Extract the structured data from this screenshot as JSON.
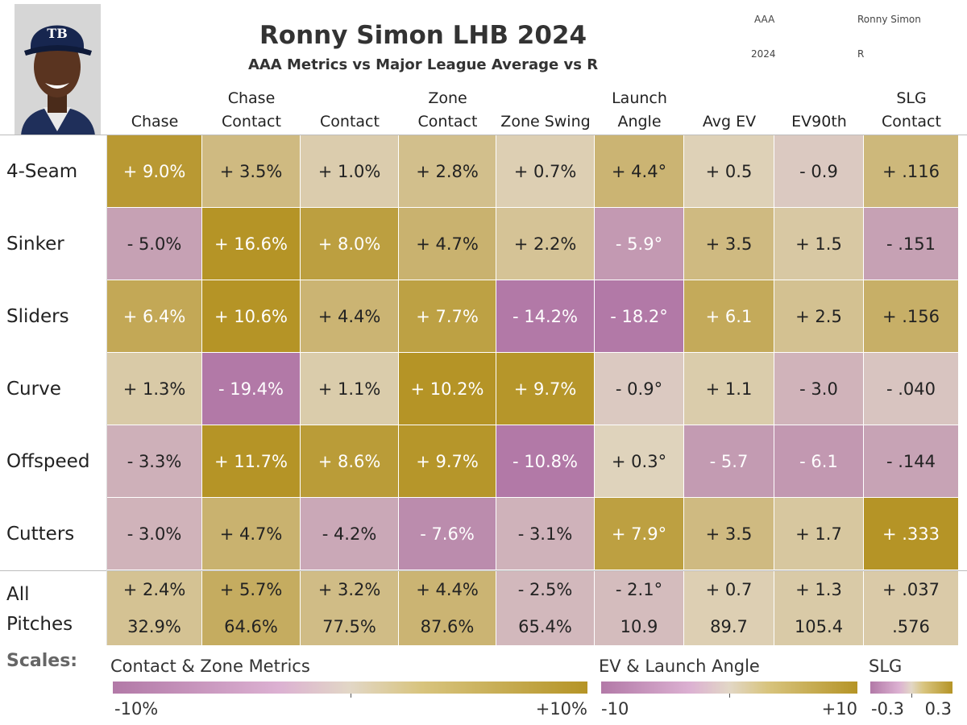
{
  "header": {
    "title": "Ronny Simon LHB 2024",
    "subtitle": "AAA Metrics vs Major League Average vs R",
    "meta": {
      "level": "AAA",
      "player": "Ronny Simon",
      "year": "2024",
      "pitcher_hand": "R"
    }
  },
  "avatar": {
    "icon": "player-headshot-icon",
    "cap_logo": "TB"
  },
  "colors": {
    "negative": "#b279a7",
    "neutral": "#e2d7c6",
    "positive": "#b59426",
    "text_light": "#ffffff",
    "text_dark": "#222222"
  },
  "chart_data": {
    "type": "table",
    "title": "Ronny Simon LHB 2024",
    "subtitle": "AAA Metrics vs Major League Average vs R",
    "columns": [
      {
        "lines": [
          "",
          "Chase"
        ],
        "scale": "pct"
      },
      {
        "lines": [
          "Chase",
          "Contact"
        ],
        "scale": "pct"
      },
      {
        "lines": [
          "",
          "Contact"
        ],
        "scale": "pct"
      },
      {
        "lines": [
          "Zone",
          "Contact"
        ],
        "scale": "pct"
      },
      {
        "lines": [
          "",
          "Zone Swing"
        ],
        "scale": "pct"
      },
      {
        "lines": [
          "Launch",
          "Angle"
        ],
        "scale": "ev"
      },
      {
        "lines": [
          "",
          "Avg EV"
        ],
        "scale": "ev"
      },
      {
        "lines": [
          "",
          "EV90th"
        ],
        "scale": "ev"
      },
      {
        "lines": [
          "SLG",
          "Contact"
        ],
        "scale": "slg"
      }
    ],
    "rows": [
      {
        "label": "4-Seam",
        "values": [
          9.0,
          3.5,
          1.0,
          2.8,
          0.7,
          4.4,
          0.5,
          -0.9,
          0.116
        ],
        "display": [
          "+ 9.0%",
          "+ 3.5%",
          "+ 1.0%",
          "+ 2.8%",
          "+ 0.7%",
          "+ 4.4°",
          "+ 0.5",
          "- 0.9",
          "+ .116"
        ]
      },
      {
        "label": "Sinker",
        "values": [
          -5.0,
          16.6,
          8.0,
          4.7,
          2.2,
          -5.9,
          3.5,
          1.5,
          -0.151
        ],
        "display": [
          "- 5.0%",
          "+ 16.6%",
          "+ 8.0%",
          "+ 4.7%",
          "+ 2.2%",
          "- 5.9°",
          "+ 3.5",
          "+ 1.5",
          "- .151"
        ]
      },
      {
        "label": "Sliders",
        "values": [
          6.4,
          10.6,
          4.4,
          7.7,
          -14.2,
          -18.2,
          6.1,
          2.5,
          0.156
        ],
        "display": [
          "+ 6.4%",
          "+ 10.6%",
          "+ 4.4%",
          "+ 7.7%",
          "- 14.2%",
          "- 18.2°",
          "+ 6.1",
          "+ 2.5",
          "+ .156"
        ]
      },
      {
        "label": "Curve",
        "values": [
          1.3,
          -19.4,
          1.1,
          10.2,
          9.7,
          -0.9,
          1.1,
          -3.0,
          -0.04
        ],
        "display": [
          "+ 1.3%",
          "- 19.4%",
          "+ 1.1%",
          "+ 10.2%",
          "+ 9.7%",
          "- 0.9°",
          "+ 1.1",
          "- 3.0",
          "- .040"
        ]
      },
      {
        "label": "Offspeed",
        "values": [
          -3.3,
          11.7,
          8.6,
          9.7,
          -10.8,
          0.3,
          -5.7,
          -6.1,
          -0.144
        ],
        "display": [
          "- 3.3%",
          "+ 11.7%",
          "+ 8.6%",
          "+ 9.7%",
          "- 10.8%",
          "+ 0.3°",
          "- 5.7",
          "- 6.1",
          "- .144"
        ]
      },
      {
        "label": "Cutters",
        "values": [
          -3.0,
          4.7,
          -4.2,
          -7.6,
          -3.1,
          7.9,
          3.5,
          1.7,
          0.333
        ],
        "display": [
          "- 3.0%",
          "+ 4.7%",
          "- 4.2%",
          "- 7.6%",
          "- 3.1%",
          "+ 7.9°",
          "+ 3.5",
          "+ 1.7",
          "+ .333"
        ]
      }
    ],
    "all_pitches": {
      "label_lines": [
        "All",
        "Pitches"
      ],
      "values": [
        2.4,
        5.7,
        3.2,
        4.4,
        -2.5,
        -2.1,
        0.7,
        1.3,
        0.037
      ],
      "display": [
        "+ 2.4%",
        "+ 5.7%",
        "+ 3.2%",
        "+ 4.4%",
        "- 2.5%",
        "- 2.1°",
        "+ 0.7",
        "+ 1.3",
        "+ .037"
      ],
      "totals": [
        "32.9%",
        "64.6%",
        "77.5%",
        "87.6%",
        "65.4%",
        "10.9",
        "89.7",
        "105.4",
        ".576"
      ]
    },
    "scales": {
      "label": "Scales:",
      "items": [
        {
          "key": "pct",
          "title": "Contact & Zone Metrics",
          "min": -10,
          "max": 10,
          "min_label": "-10%",
          "max_label": "+10%"
        },
        {
          "key": "ev",
          "title": "EV & Launch Angle",
          "min": -10,
          "max": 10,
          "min_label": "-10",
          "max_label": "+10"
        },
        {
          "key": "slg",
          "title": "SLG",
          "min": -0.3,
          "max": 0.3,
          "min_label": "-0.3",
          "max_label": "0.3"
        }
      ]
    }
  }
}
